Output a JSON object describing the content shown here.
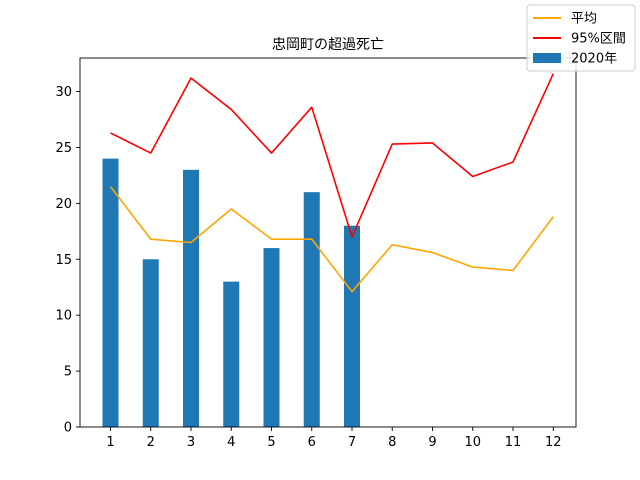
{
  "chart_data": {
    "type": "bar",
    "title": "忠岡町の超過死亡",
    "xlabel": "",
    "ylabel": "",
    "categories": [
      "1",
      "2",
      "3",
      "4",
      "5",
      "6",
      "7",
      "8",
      "9",
      "10",
      "11",
      "12"
    ],
    "ylim": [
      0,
      33
    ],
    "yticks": [
      0,
      5,
      10,
      15,
      20,
      25,
      30
    ],
    "grid": false,
    "legend_position": "top-right",
    "series": [
      {
        "name": "2020年",
        "type": "bar",
        "color": "#1f77b4",
        "values": [
          24,
          15,
          23,
          13,
          16,
          21,
          18,
          null,
          null,
          null,
          null,
          null
        ]
      },
      {
        "name": "平均",
        "type": "line",
        "color": "#ffa500",
        "values": [
          21.5,
          16.8,
          16.5,
          19.5,
          16.8,
          16.8,
          12.1,
          16.3,
          15.6,
          14.3,
          14.0,
          18.8
        ]
      },
      {
        "name": "95%区間",
        "type": "line",
        "color": "#ff0000",
        "values": [
          26.3,
          24.5,
          31.2,
          28.4,
          24.5,
          28.6,
          17.0,
          25.3,
          25.4,
          22.4,
          23.7,
          31.6
        ]
      }
    ]
  }
}
